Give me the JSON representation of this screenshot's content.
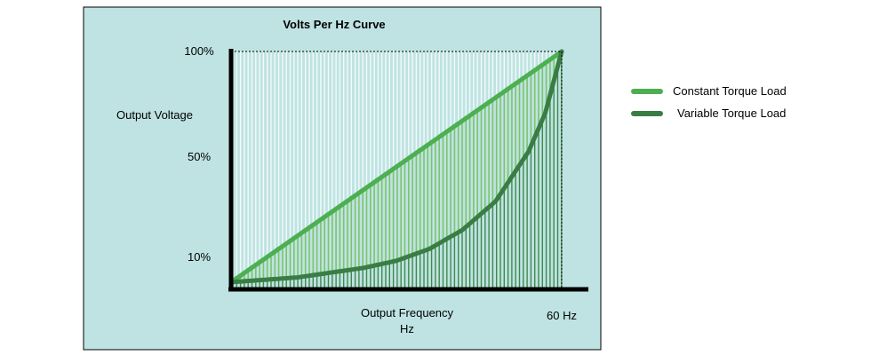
{
  "chart_data": {
    "type": "line",
    "title": "Volts Per Hz Curve",
    "xlabel": "Output Frequency",
    "xlabel_unit": "Hz",
    "ylabel": "Output Voltage",
    "x_tick_label": "60 Hz",
    "xlim": [
      0,
      60
    ],
    "ylim": [
      0,
      100
    ],
    "y_ticks": [
      {
        "label": "100%",
        "value": 100
      },
      {
        "label": "50%",
        "value": 50
      },
      {
        "label": "10%",
        "value": 10
      }
    ],
    "legend_position": "right",
    "series": [
      {
        "name": "Constant Torque Load",
        "color": "#4caf50",
        "x": [
          0,
          60
        ],
        "values": [
          3,
          100
        ]
      },
      {
        "name": "Variable Torque Load",
        "color": "#3a7d44",
        "x": [
          0,
          6,
          12,
          18,
          24,
          30,
          36,
          42,
          48,
          54,
          57,
          60
        ],
        "values": [
          3,
          4,
          5,
          7,
          9,
          12,
          17,
          25,
          37,
          58,
          74,
          100
        ]
      }
    ]
  },
  "colors": {
    "background": "#bfe3e3",
    "frame": "#000000",
    "fill_light": "#f2fbf8",
    "fill_mid": "#7cc46b",
    "fill_dark": "#3f8a49"
  }
}
